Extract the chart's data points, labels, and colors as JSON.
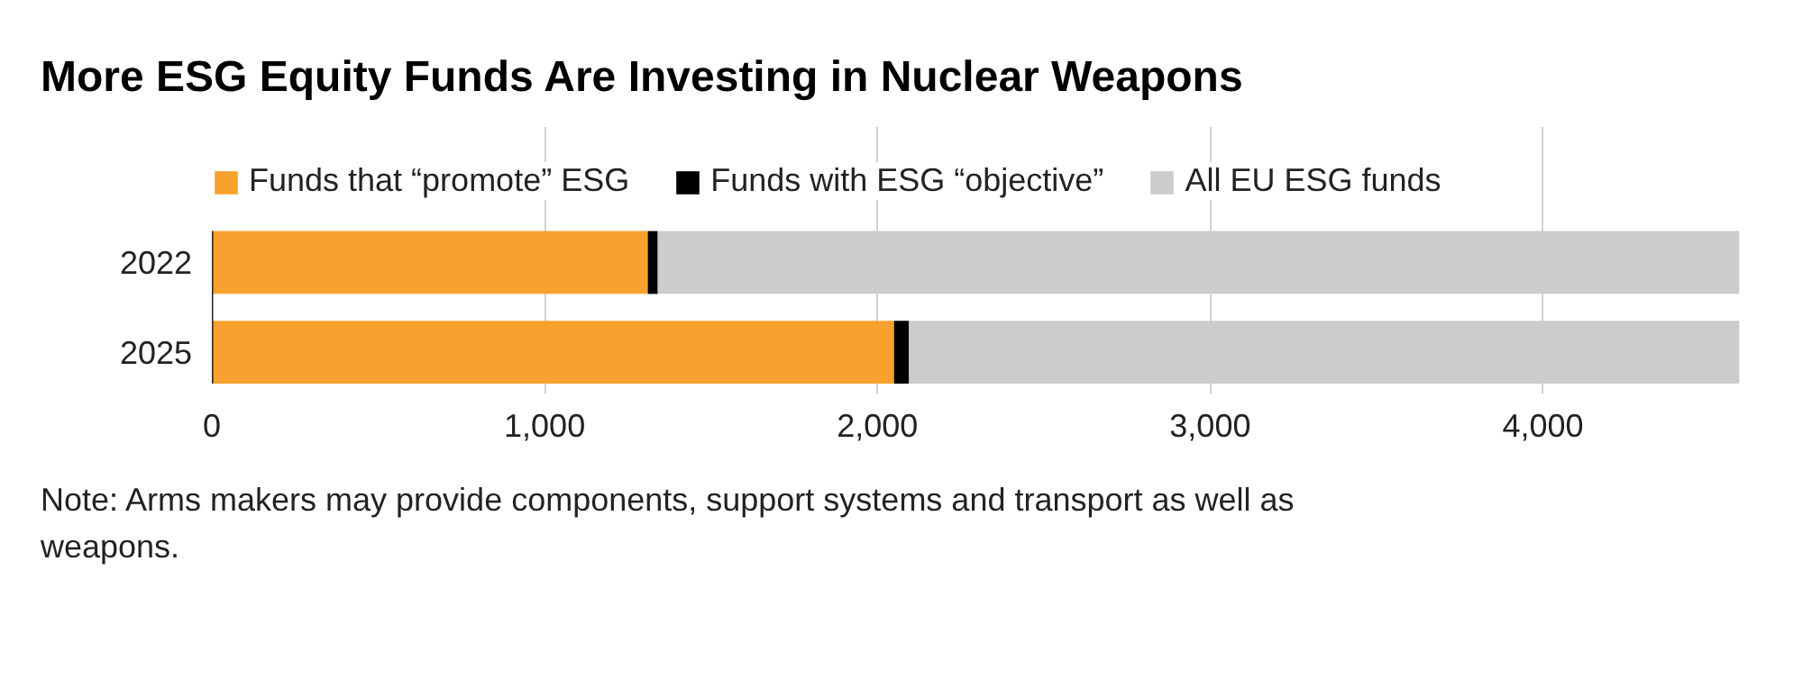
{
  "chart_data": {
    "type": "bar",
    "orientation": "horizontal",
    "stacked": true,
    "title": "More ESG Equity Funds Are Investing in Nuclear Weapons",
    "categories": [
      "2022",
      "2025"
    ],
    "series": [
      {
        "name": "Funds that “promote” ESG",
        "color": "#f9a12e",
        "values": [
          1310,
          2050
        ]
      },
      {
        "name": "Funds with ESG “objective”",
        "color": "#000000",
        "values": [
          30,
          45
        ]
      },
      {
        "name": "All EU ESG funds",
        "color": "#cccccc",
        "values": [
          3250,
          2495
        ]
      }
    ],
    "xlim": [
      0,
      4600
    ],
    "xticks": [
      0,
      {
        "value": 1000,
        "label": "1,000"
      },
      {
        "value": 2000,
        "label": "2,000"
      },
      {
        "value": 3000,
        "label": "3,000"
      },
      {
        "value": 4000,
        "label": "4,000"
      }
    ],
    "grid": "x",
    "legend": "top left",
    "annotations": [
      "Note: Arms makers may provide components, support systems and transport as well as weapons."
    ]
  }
}
